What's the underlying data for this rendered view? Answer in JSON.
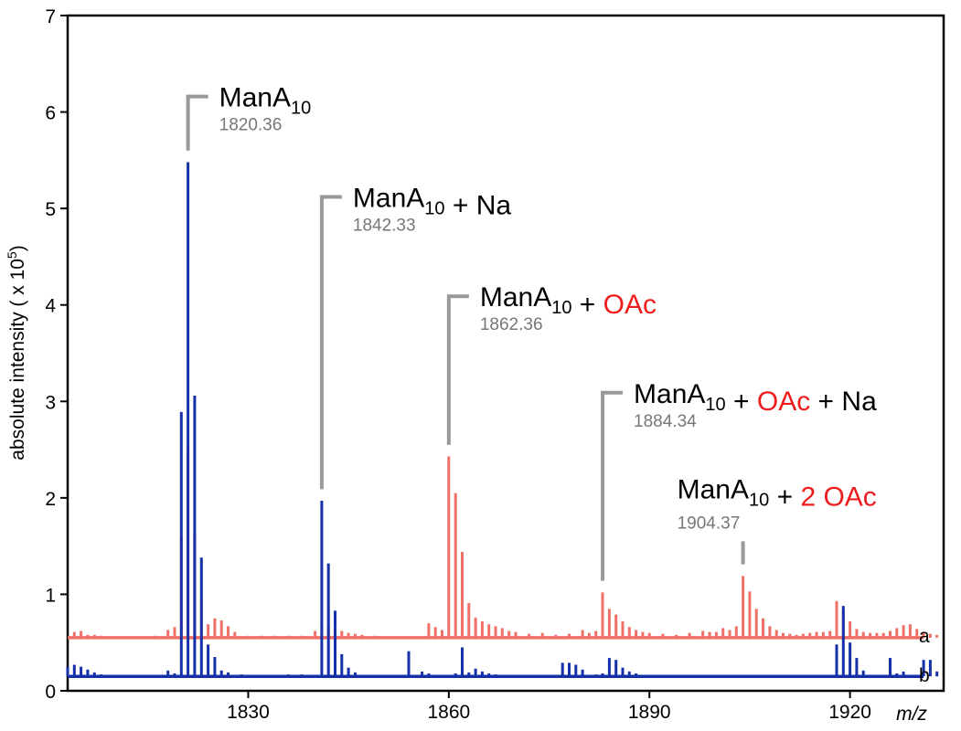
{
  "chart_data": {
    "type": "bar",
    "ylabel_prefix": "absolute intensity ( x 10",
    "ylabel_exp": "5",
    "ylabel_suffix": ")",
    "xlabel": "m/z",
    "xlim": [
      1803,
      1934
    ],
    "ylim": [
      0,
      7
    ],
    "xticks": [
      1830,
      1860,
      1890,
      1920
    ],
    "yticks": [
      0,
      1,
      2,
      3,
      4,
      5,
      6,
      7
    ],
    "baselines": {
      "a": 0.55,
      "b": 0.15
    },
    "colors": {
      "a": "#f07068",
      "b": "#1530a8",
      "leader": "#999999",
      "black": "#000000",
      "red": "#ee1c1c",
      "mass": "#777777"
    },
    "series": [
      {
        "name": "a",
        "points": [
          [
            1804,
            0.61
          ],
          [
            1805,
            0.62
          ],
          [
            1806,
            0.58
          ],
          [
            1807,
            0.58
          ],
          [
            1808,
            0.57
          ],
          [
            1812,
            0.56
          ],
          [
            1814,
            0.56
          ],
          [
            1816,
            0.57
          ],
          [
            1818,
            0.63
          ],
          [
            1819,
            0.66
          ],
          [
            1820,
            1.58
          ],
          [
            1821,
            2.53
          ],
          [
            1822,
            1.64
          ],
          [
            1823,
            0.96
          ],
          [
            1824,
            0.69
          ],
          [
            1825,
            0.75
          ],
          [
            1826,
            0.73
          ],
          [
            1827,
            0.67
          ],
          [
            1828,
            0.61
          ],
          [
            1830,
            0.57
          ],
          [
            1832,
            0.57
          ],
          [
            1834,
            0.57
          ],
          [
            1836,
            0.57
          ],
          [
            1838,
            0.57
          ],
          [
            1840,
            0.62
          ],
          [
            1841,
            0.69
          ],
          [
            1842,
            0.67
          ],
          [
            1843,
            0.65
          ],
          [
            1844,
            0.62
          ],
          [
            1845,
            0.6
          ],
          [
            1846,
            0.59
          ],
          [
            1847,
            0.58
          ],
          [
            1849,
            0.57
          ],
          [
            1851,
            0.56
          ],
          [
            1853,
            0.56
          ],
          [
            1855,
            0.56
          ],
          [
            1857,
            0.7
          ],
          [
            1858,
            0.66
          ],
          [
            1859,
            0.63
          ],
          [
            1860,
            2.43
          ],
          [
            1861,
            2.05
          ],
          [
            1862,
            1.44
          ],
          [
            1863,
            0.91
          ],
          [
            1864,
            0.76
          ],
          [
            1865,
            0.72
          ],
          [
            1866,
            0.69
          ],
          [
            1867,
            0.67
          ],
          [
            1868,
            0.65
          ],
          [
            1869,
            0.62
          ],
          [
            1870,
            0.61
          ],
          [
            1872,
            0.59
          ],
          [
            1874,
            0.6
          ],
          [
            1876,
            0.58
          ],
          [
            1878,
            0.59
          ],
          [
            1880,
            0.63
          ],
          [
            1881,
            0.6
          ],
          [
            1882,
            0.62
          ],
          [
            1883,
            1.02
          ],
          [
            1884,
            0.85
          ],
          [
            1885,
            0.79
          ],
          [
            1886,
            0.72
          ],
          [
            1887,
            0.66
          ],
          [
            1888,
            0.63
          ],
          [
            1889,
            0.61
          ],
          [
            1890,
            0.6
          ],
          [
            1892,
            0.59
          ],
          [
            1894,
            0.58
          ],
          [
            1896,
            0.6
          ],
          [
            1898,
            0.62
          ],
          [
            1899,
            0.61
          ],
          [
            1900,
            0.61
          ],
          [
            1901,
            0.65
          ],
          [
            1902,
            0.63
          ],
          [
            1903,
            0.67
          ],
          [
            1904,
            1.19
          ],
          [
            1905,
            1.03
          ],
          [
            1906,
            0.85
          ],
          [
            1907,
            0.75
          ],
          [
            1908,
            0.67
          ],
          [
            1909,
            0.63
          ],
          [
            1910,
            0.6
          ],
          [
            1911,
            0.59
          ],
          [
            1912,
            0.58
          ],
          [
            1913,
            0.59
          ],
          [
            1914,
            0.6
          ],
          [
            1915,
            0.61
          ],
          [
            1916,
            0.61
          ],
          [
            1917,
            0.62
          ],
          [
            1918,
            0.93
          ],
          [
            1919,
            0.82
          ],
          [
            1920,
            0.72
          ],
          [
            1921,
            0.64
          ],
          [
            1922,
            0.61
          ],
          [
            1923,
            0.6
          ],
          [
            1924,
            0.6
          ],
          [
            1925,
            0.6
          ],
          [
            1926,
            0.62
          ],
          [
            1927,
            0.65
          ],
          [
            1928,
            0.68
          ],
          [
            1929,
            0.69
          ],
          [
            1930,
            0.64
          ],
          [
            1931,
            0.6
          ],
          [
            1932,
            0.59
          ],
          [
            1933,
            0.58
          ]
        ]
      },
      {
        "name": "b",
        "points": [
          [
            1803,
            0.25
          ],
          [
            1804,
            0.27
          ],
          [
            1805,
            0.25
          ],
          [
            1806,
            0.22
          ],
          [
            1807,
            0.19
          ],
          [
            1808,
            0.17
          ],
          [
            1818,
            0.21
          ],
          [
            1819,
            0.18
          ],
          [
            1820,
            2.89
          ],
          [
            1821,
            5.48
          ],
          [
            1822,
            3.06
          ],
          [
            1823,
            1.38
          ],
          [
            1824,
            0.48
          ],
          [
            1825,
            0.35
          ],
          [
            1826,
            0.21
          ],
          [
            1827,
            0.19
          ],
          [
            1829,
            0.17
          ],
          [
            1830,
            0.16
          ],
          [
            1836,
            0.17
          ],
          [
            1838,
            0.17
          ],
          [
            1841,
            1.97
          ],
          [
            1842,
            1.32
          ],
          [
            1843,
            0.83
          ],
          [
            1844,
            0.38
          ],
          [
            1845,
            0.24
          ],
          [
            1846,
            0.19
          ],
          [
            1847,
            0.16
          ],
          [
            1854,
            0.41
          ],
          [
            1855,
            0.16
          ],
          [
            1856,
            0.2
          ],
          [
            1857,
            0.18
          ],
          [
            1861,
            0.18
          ],
          [
            1862,
            0.45
          ],
          [
            1863,
            0.19
          ],
          [
            1864,
            0.23
          ],
          [
            1865,
            0.2
          ],
          [
            1866,
            0.18
          ],
          [
            1867,
            0.17
          ],
          [
            1872,
            0.16
          ],
          [
            1877,
            0.29
          ],
          [
            1878,
            0.29
          ],
          [
            1879,
            0.27
          ],
          [
            1880,
            0.22
          ],
          [
            1882,
            0.17
          ],
          [
            1883,
            0.18
          ],
          [
            1884,
            0.34
          ],
          [
            1885,
            0.32
          ],
          [
            1886,
            0.24
          ],
          [
            1887,
            0.2
          ],
          [
            1888,
            0.18
          ],
          [
            1892,
            0.16
          ],
          [
            1894,
            0.16
          ],
          [
            1896,
            0.16
          ],
          [
            1900,
            0.16
          ],
          [
            1904,
            0.16
          ],
          [
            1910,
            0.16
          ],
          [
            1918,
            0.48
          ],
          [
            1919,
            0.88
          ],
          [
            1920,
            0.5
          ],
          [
            1921,
            0.34
          ],
          [
            1922,
            0.21
          ],
          [
            1924,
            0.16
          ],
          [
            1926,
            0.34
          ],
          [
            1927,
            0.18
          ],
          [
            1928,
            0.2
          ],
          [
            1931,
            0.32
          ],
          [
            1932,
            0.32
          ],
          [
            1933,
            0.2
          ]
        ]
      }
    ],
    "annotations": [
      {
        "segments": [
          {
            "text": "ManA",
            "color": "black"
          },
          {
            "text": "10",
            "color": "black",
            "sub": true
          }
        ],
        "mass": "1820.36",
        "peak_x": 1821,
        "peak_y": 5.6,
        "top_y": 6.16
      },
      {
        "segments": [
          {
            "text": "ManA",
            "color": "black"
          },
          {
            "text": "10",
            "color": "black",
            "sub": true
          },
          {
            "text": " + Na",
            "color": "black"
          }
        ],
        "mass": "1842.33",
        "peak_x": 1841,
        "peak_y": 2.09,
        "top_y": 5.12
      },
      {
        "segments": [
          {
            "text": "ManA",
            "color": "black"
          },
          {
            "text": "10",
            "color": "black",
            "sub": true
          },
          {
            "text": " + ",
            "color": "black"
          },
          {
            "text": "OAc",
            "color": "red"
          }
        ],
        "mass": "1862.36",
        "peak_x": 1860,
        "peak_y": 2.55,
        "top_y": 4.09
      },
      {
        "segments": [
          {
            "text": "ManA",
            "color": "black"
          },
          {
            "text": "10",
            "color": "black",
            "sub": true
          },
          {
            "text": " + ",
            "color": "black"
          },
          {
            "text": "OAc",
            "color": "red"
          },
          {
            "text": " + Na",
            "color": "black"
          }
        ],
        "mass": "1884.34",
        "peak_x": 1883,
        "peak_y": 1.14,
        "top_y": 3.09
      },
      {
        "segments": [
          {
            "text": "ManA",
            "color": "black"
          },
          {
            "text": "10",
            "color": "black",
            "sub": true
          },
          {
            "text": " + ",
            "color": "black"
          },
          {
            "text": "2 OAc",
            "color": "red"
          }
        ],
        "mass": "1904.37",
        "peak_x": 1904,
        "peak_y": 1.31,
        "top_y": 1.55
      }
    ]
  }
}
